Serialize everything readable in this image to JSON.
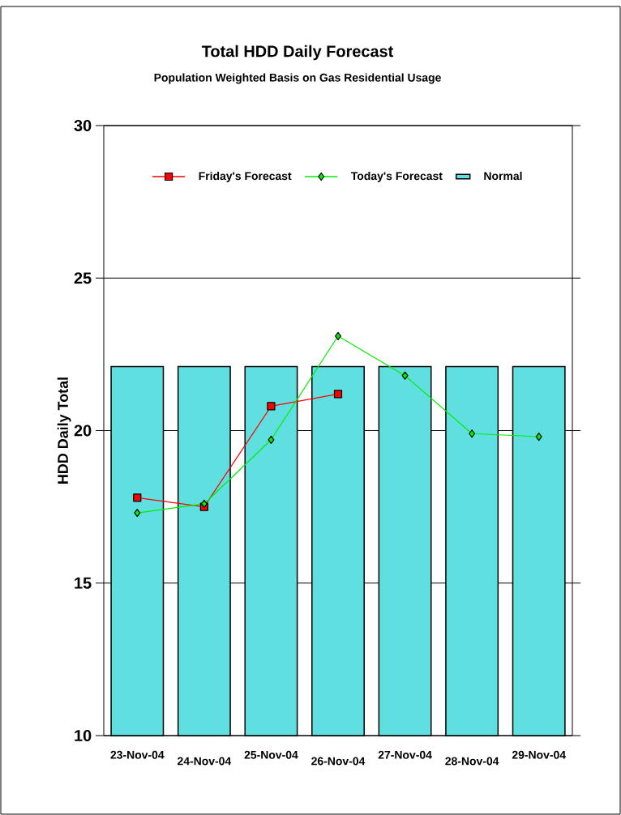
{
  "chart_data": {
    "type": "bar",
    "title": "Total HDD Daily Forecast",
    "subtitle": "Population Weighted Basis on Gas Residential Usage",
    "ylabel": "HDD Daily Total",
    "categories": [
      "23-Nov-04",
      "24-Nov-04",
      "25-Nov-04",
      "26-Nov-04",
      "27-Nov-04",
      "28-Nov-04",
      "29-Nov-04"
    ],
    "series": [
      {
        "name": "Friday's Forecast",
        "type": "line",
        "color": "#ff0000",
        "marker": "square",
        "values": [
          17.8,
          17.5,
          20.8,
          21.2,
          null,
          null,
          null
        ]
      },
      {
        "name": "Today's Forecast",
        "type": "line",
        "color": "#00ee00",
        "marker": "diamond",
        "values": [
          17.3,
          17.6,
          19.7,
          23.1,
          21.8,
          19.9,
          19.8
        ]
      },
      {
        "name": "Normal",
        "type": "bar",
        "color": "#5fdfdf",
        "values": [
          22.1,
          22.1,
          22.1,
          22.1,
          22.1,
          22.1,
          22.1
        ]
      }
    ],
    "ylim": [
      10,
      30
    ],
    "yticks": [
      10,
      15,
      20,
      25,
      30
    ],
    "grid": "y",
    "legend": "top"
  }
}
